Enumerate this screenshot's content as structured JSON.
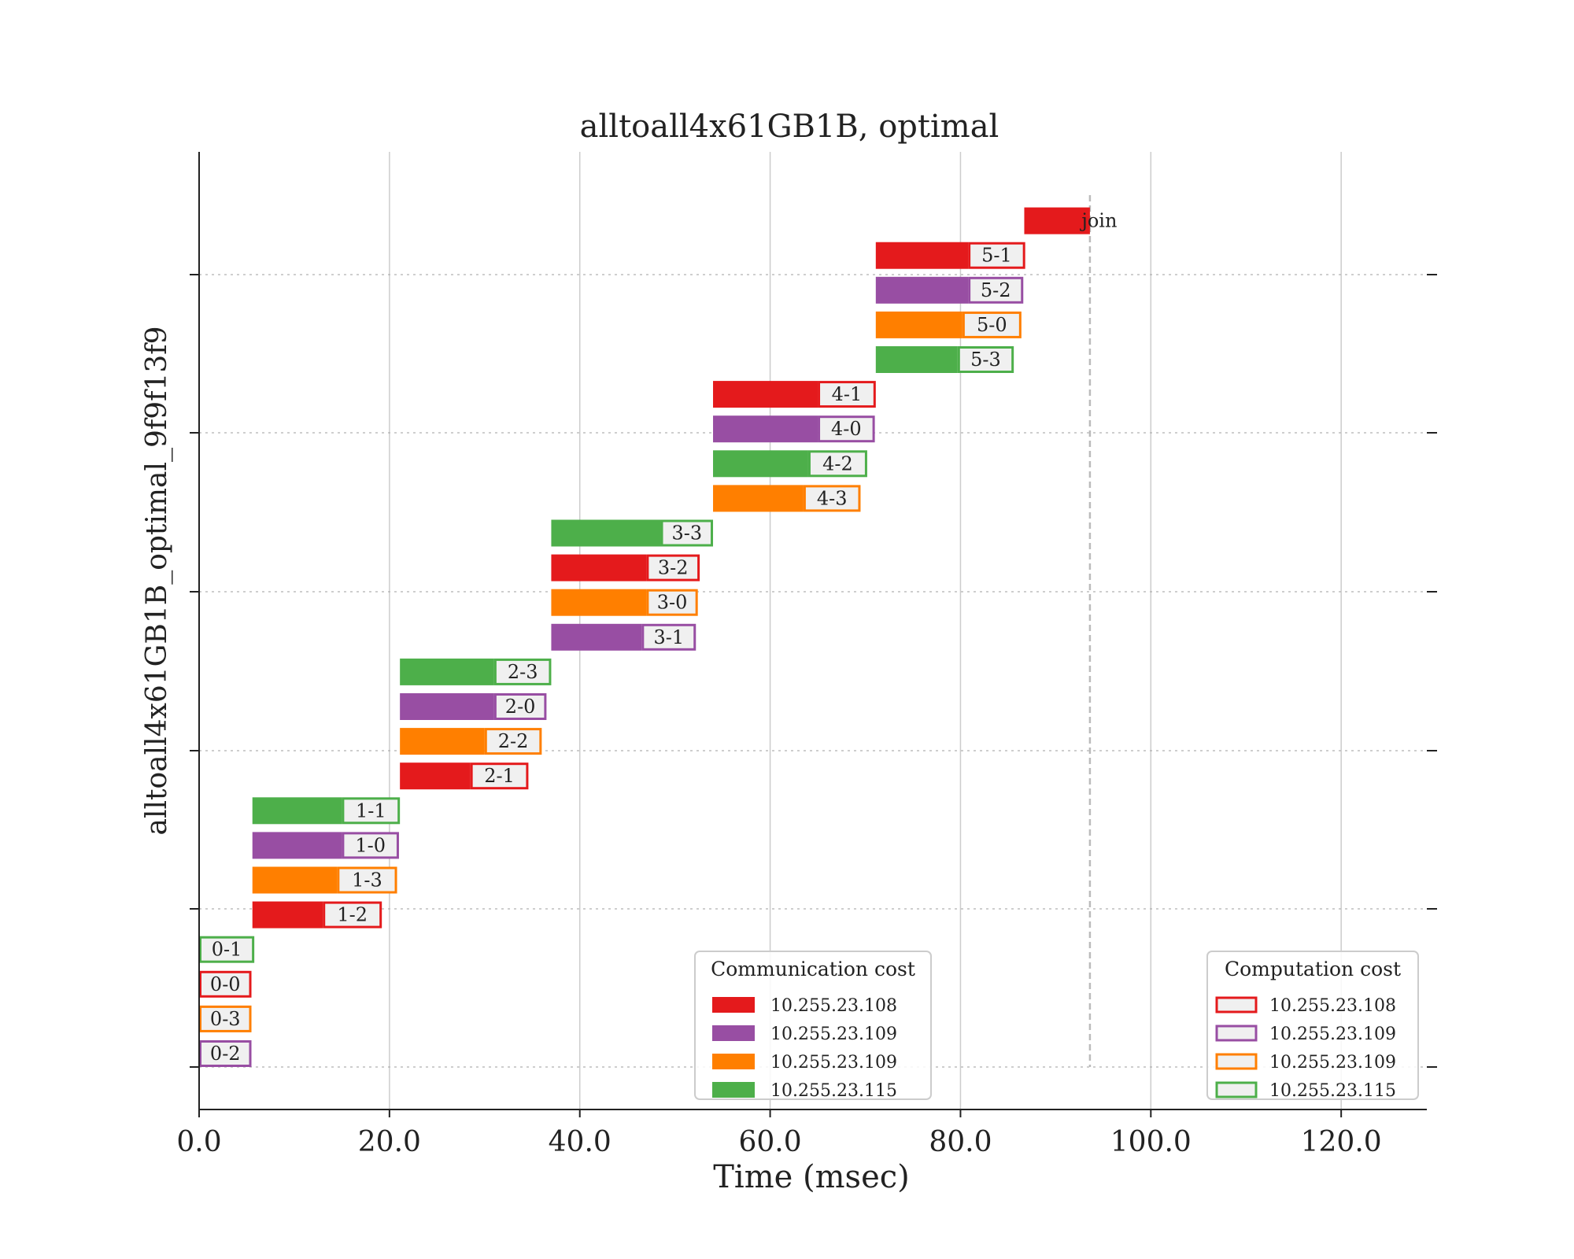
{
  "chart_data": {
    "type": "gantt",
    "title": "alltoall4x61GB1B, optimal",
    "xlabel": "Time (msec)",
    "ylabel": "alltoall4x61GB1B_optimal_9f9f13f9",
    "xlim": [
      0,
      129
    ],
    "xticks": [
      0,
      20,
      40,
      60,
      80,
      100,
      120
    ],
    "xtick_labels": [
      "0.0",
      "20.0",
      "40.0",
      "60.0",
      "80.0",
      "100.0",
      "120.0"
    ],
    "grid": "vertical solid at x ticks, horizontal dotted at y ticks",
    "end_marker": 93.6,
    "colors": {
      "10.255.23.108": "#e41a1c",
      "10.255.23.109": "#984ea3",
      "10.255.23.109 ": "#ff7f00",
      "10.255.23.115": "#4daf4a"
    },
    "series_colors": [
      "#e41a1c",
      "#984ea3",
      "#ff7f00",
      "#4daf4a"
    ],
    "tasks": [
      {
        "label": "0-2",
        "row": 0,
        "color": 1,
        "comm_start": 0,
        "comm_end": 0,
        "comp_end": 5.5
      },
      {
        "label": "0-3",
        "row": 1,
        "color": 2,
        "comm_start": 0,
        "comm_end": 0,
        "comp_end": 5.5
      },
      {
        "label": "0-0",
        "row": 2,
        "color": 0,
        "comm_start": 0,
        "comm_end": 0,
        "comp_end": 5.5
      },
      {
        "label": "0-1",
        "row": 3,
        "color": 3,
        "comm_start": 0,
        "comm_end": 0,
        "comp_end": 5.8
      },
      {
        "label": "1-2",
        "row": 4,
        "color": 0,
        "comm_start": 5.6,
        "comm_end": 13.0,
        "comp_end": 19.2
      },
      {
        "label": "1-3",
        "row": 5,
        "color": 2,
        "comm_start": 5.6,
        "comm_end": 14.5,
        "comp_end": 20.8
      },
      {
        "label": "1-0",
        "row": 6,
        "color": 1,
        "comm_start": 5.6,
        "comm_end": 15.0,
        "comp_end": 21.0
      },
      {
        "label": "1-1",
        "row": 7,
        "color": 3,
        "comm_start": 5.6,
        "comm_end": 15.0,
        "comp_end": 21.1
      },
      {
        "label": "2-1",
        "row": 8,
        "color": 0,
        "comm_start": 21.1,
        "comm_end": 28.5,
        "comp_end": 34.6
      },
      {
        "label": "2-2",
        "row": 9,
        "color": 2,
        "comm_start": 21.1,
        "comm_end": 30.0,
        "comp_end": 36.0
      },
      {
        "label": "2-0",
        "row": 10,
        "color": 1,
        "comm_start": 21.1,
        "comm_end": 31.0,
        "comp_end": 36.5
      },
      {
        "label": "2-3",
        "row": 11,
        "color": 3,
        "comm_start": 21.1,
        "comm_end": 31.0,
        "comp_end": 37.0
      },
      {
        "label": "3-1",
        "row": 12,
        "color": 1,
        "comm_start": 37.0,
        "comm_end": 46.5,
        "comp_end": 52.2
      },
      {
        "label": "3-0",
        "row": 13,
        "color": 2,
        "comm_start": 37.0,
        "comm_end": 47.0,
        "comp_end": 52.4
      },
      {
        "label": "3-2",
        "row": 14,
        "color": 0,
        "comm_start": 37.0,
        "comm_end": 47.0,
        "comp_end": 52.6
      },
      {
        "label": "3-3",
        "row": 15,
        "color": 3,
        "comm_start": 37.0,
        "comm_end": 48.5,
        "comp_end": 54.0
      },
      {
        "label": "4-3",
        "row": 16,
        "color": 2,
        "comm_start": 54.0,
        "comm_end": 63.5,
        "comp_end": 69.5
      },
      {
        "label": "4-2",
        "row": 17,
        "color": 3,
        "comm_start": 54.0,
        "comm_end": 64.0,
        "comp_end": 70.2
      },
      {
        "label": "4-0",
        "row": 18,
        "color": 1,
        "comm_start": 54.0,
        "comm_end": 65.0,
        "comp_end": 71.0
      },
      {
        "label": "4-1",
        "row": 19,
        "color": 0,
        "comm_start": 54.0,
        "comm_end": 65.0,
        "comp_end": 71.1
      },
      {
        "label": "5-3",
        "row": 20,
        "color": 3,
        "comm_start": 71.1,
        "comm_end": 79.7,
        "comp_end": 85.6
      },
      {
        "label": "5-0",
        "row": 21,
        "color": 2,
        "comm_start": 71.1,
        "comm_end": 80.2,
        "comp_end": 86.4
      },
      {
        "label": "5-2",
        "row": 22,
        "color": 1,
        "comm_start": 71.1,
        "comm_end": 80.8,
        "comp_end": 86.6
      },
      {
        "label": "5-1",
        "row": 23,
        "color": 0,
        "comm_start": 71.1,
        "comm_end": 80.8,
        "comp_end": 86.8
      },
      {
        "label": "join",
        "row": 24,
        "color": 0,
        "comm_start": 86.7,
        "comm_end": 93.6,
        "comp_end": 93.6
      }
    ],
    "legends": [
      {
        "title": "Communication cost",
        "style": "filled",
        "position": "lower-center",
        "entries": [
          "10.255.23.108",
          "10.255.23.109",
          "10.255.23.109",
          "10.255.23.115"
        ]
      },
      {
        "title": "Computation cost",
        "style": "outlined",
        "position": "lower-right",
        "entries": [
          "10.255.23.108",
          "10.255.23.109",
          "10.255.23.109",
          "10.255.23.115"
        ]
      }
    ]
  }
}
